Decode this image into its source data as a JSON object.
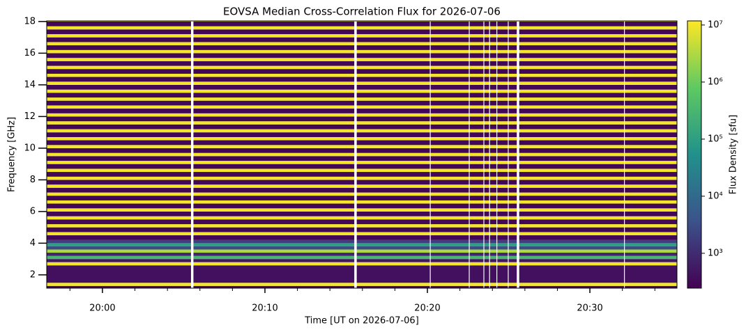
{
  "chart_data": {
    "type": "heatmap",
    "title": "EOVSA Median Cross-Correlation Flux for 2026-07-06",
    "xlabel": "Time [UT on 2026-07-06]",
    "ylabel": "Frequency [GHz]",
    "colorbar_label": "Flux Density [sfu]",
    "colormap": "viridis",
    "xlim": [
      1196.57,
      1235.36
    ],
    "xticks": [
      {
        "value": 1200,
        "label": "20:00"
      },
      {
        "value": 1210,
        "label": "20:10"
      },
      {
        "value": 1220,
        "label": "20:20"
      },
      {
        "value": 1230,
        "label": "20:30"
      }
    ],
    "xminorticks": [
      1198,
      1202,
      1204,
      1206,
      1208,
      1212,
      1214,
      1216,
      1218,
      1222,
      1224,
      1226,
      1228,
      1232,
      1234
    ],
    "ylim": [
      1.16,
      18.04
    ],
    "yticks": [
      2,
      4,
      6,
      8,
      10,
      12,
      14,
      16,
      18
    ],
    "clim": [
      245,
      11800000
    ],
    "clog": true,
    "cticks": [
      {
        "value": 1000,
        "label": "10³"
      },
      {
        "value": 10000,
        "label": "10⁴"
      },
      {
        "value": 100000,
        "label": "10⁵"
      },
      {
        "value": 1000000,
        "label": "10⁶"
      },
      {
        "value": 10000000,
        "label": "10⁷"
      }
    ],
    "y_edges": [
      1.16,
      1.3,
      1.5,
      2.6,
      2.8,
      3.0,
      3.2,
      3.4,
      3.6,
      3.8,
      4.0,
      4.2,
      4.5,
      4.7,
      5.0,
      5.2,
      5.5,
      5.7,
      6.0,
      6.2,
      6.5,
      6.7,
      7.0,
      7.2,
      7.5,
      7.7,
      8.0,
      8.2,
      8.5,
      8.7,
      9.0,
      9.2,
      9.5,
      9.7,
      10.0,
      10.2,
      10.5,
      10.7,
      11.0,
      11.2,
      11.5,
      11.7,
      12.0,
      12.2,
      12.5,
      12.7,
      13.0,
      13.2,
      13.5,
      13.7,
      14.0,
      14.2,
      14.5,
      14.7,
      15.0,
      15.2,
      15.5,
      15.7,
      16.0,
      16.2,
      16.5,
      16.7,
      17.0,
      17.2,
      17.5,
      17.7,
      18.0,
      18.04
    ],
    "values": [
      300,
      10000000,
      400,
      10000000,
      500,
      300000,
      800,
      3000000,
      3000,
      100000,
      2000,
      300,
      10000000,
      300,
      10000000,
      300,
      10000000,
      300,
      10000000,
      300,
      10000000,
      300,
      10000000,
      300,
      10000000,
      300,
      10000000,
      300,
      10000000,
      300,
      10000000,
      300,
      10000000,
      300,
      10000000,
      300,
      10000000,
      300,
      10000000,
      300,
      10000000,
      300,
      10000000,
      300,
      10000000,
      300,
      10000000,
      300,
      10000000,
      300,
      10000000,
      300,
      10000000,
      300,
      10000000,
      300,
      10000000,
      300,
      10000000,
      300,
      10000000,
      300,
      10000000,
      300,
      10000000,
      300,
      10000000
    ],
    "gaps": [
      [
        1205.45,
        1205.6
      ],
      [
        1215.5,
        1215.65
      ],
      [
        1220.15,
        1220.2
      ],
      [
        1222.55,
        1222.6
      ],
      [
        1223.45,
        1223.5
      ],
      [
        1223.8,
        1223.85
      ],
      [
        1224.25,
        1224.3
      ],
      [
        1224.95,
        1225.0
      ],
      [
        1225.5,
        1225.65
      ],
      [
        1232.1,
        1232.15
      ]
    ]
  }
}
